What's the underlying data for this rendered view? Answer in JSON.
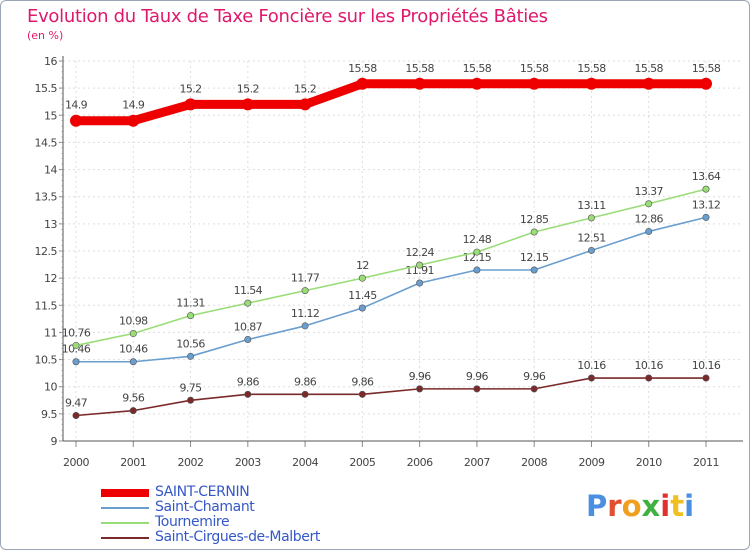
{
  "title": "Evolution du Taux de Taxe Foncière sur les Propriétés Bâties",
  "subtitle": "(en %)",
  "logo": {
    "letters": [
      "P",
      "r",
      "o",
      "x",
      "i",
      "t",
      "i"
    ],
    "colors": [
      "#4a8fe0",
      "#e05030",
      "#f0a020",
      "#40b040",
      "#e03030",
      "#f0c020",
      "#4a8fe0"
    ]
  },
  "chart_data": {
    "type": "line",
    "title": "Evolution du Taux de Taxe Foncière sur les Propriétés Bâties",
    "ylabel": "(en %)",
    "xlabel": "",
    "ylim": [
      9,
      16
    ],
    "yticks": [
      "9",
      "9.5",
      "10",
      "10.5",
      "11",
      "11.5",
      "12",
      "12.5",
      "13",
      "13.5",
      "14",
      "14.5",
      "15",
      "15.5",
      "16"
    ],
    "x": [
      "2000",
      "2001",
      "2002",
      "2003",
      "2004",
      "2005",
      "2006",
      "2007",
      "2008",
      "2009",
      "2010",
      "2011"
    ],
    "grid": true,
    "legend": "bottom-left",
    "series": [
      {
        "name": "SAINT-CERNIN",
        "color": "#ee0000",
        "values": [
          14.9,
          14.9,
          15.2,
          15.2,
          15.2,
          15.58,
          15.58,
          15.58,
          15.58,
          15.58,
          15.58,
          15.58
        ],
        "labels": [
          "14.9",
          "14.9",
          "15.2",
          "15.2",
          "15.2",
          "15.58",
          "15.58",
          "15.58",
          "15.58",
          "15.58",
          "15.58",
          "15.58"
        ]
      },
      {
        "name": "Saint-Chamant",
        "color": "#6a9ecf",
        "values": [
          10.46,
          10.46,
          10.56,
          10.87,
          11.12,
          11.45,
          11.91,
          12.15,
          12.15,
          12.51,
          12.86,
          13.12
        ],
        "labels": [
          "10.46",
          "10.46",
          "10.56",
          "10.87",
          "11.12",
          "11.45",
          "11.91",
          "12.15",
          "12.15",
          "12.51",
          "12.86",
          "13.12"
        ]
      },
      {
        "name": "Tournemire",
        "color": "#99dd77",
        "values": [
          10.76,
          10.98,
          11.31,
          11.54,
          11.77,
          12,
          12.24,
          12.48,
          12.85,
          13.11,
          13.37,
          13.64
        ],
        "labels": [
          "10.76",
          "10.98",
          "11.31",
          "11.54",
          "11.77",
          "12",
          "12.24",
          "12.48",
          "12.85",
          "13.11",
          "13.37",
          "13.64"
        ]
      },
      {
        "name": "Saint-Cirgues-de-Malbert",
        "color": "#7a2a2a",
        "values": [
          9.47,
          9.56,
          9.75,
          9.86,
          9.86,
          9.86,
          9.96,
          9.96,
          9.96,
          10.16,
          10.16,
          10.16
        ],
        "labels": [
          "9.47",
          "9.56",
          "9.75",
          "9.86",
          "9.86",
          "9.86",
          "9.96",
          "9.96",
          "9.96",
          "10.16",
          "10.16",
          "10.16"
        ]
      }
    ]
  }
}
